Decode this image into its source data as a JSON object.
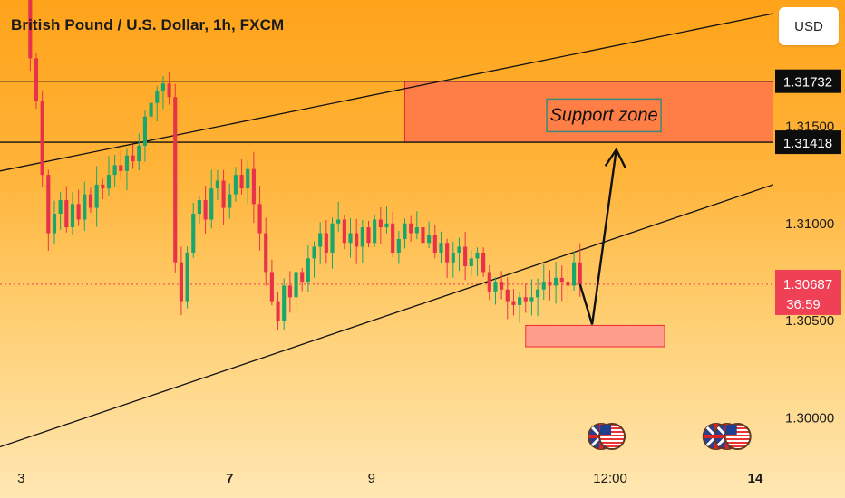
{
  "header": {
    "title": "British Pound / U.S. Dollar, 1h, FXCM",
    "currency_button": "USD"
  },
  "price_axis": {
    "ticks": [
      "1.31500",
      "1.31000",
      "1.30500",
      "1.30000"
    ],
    "tag_resistance": "1.31732",
    "tag_support": "1.31418",
    "tag_last": "1.30687",
    "tag_countdown": "36:59"
  },
  "time_axis": {
    "ticks": [
      "3",
      "7",
      "9",
      "12:00",
      "14"
    ],
    "bold": [
      false,
      true,
      false,
      false,
      true
    ]
  },
  "annotations": {
    "support_zone_label": "Support zone"
  },
  "colors": {
    "up": "#18a66e",
    "down": "#e8324a",
    "zone": "#ff7e45",
    "zone_border": "#ee2a39",
    "target_box": "#ff9e8a",
    "last_tag": "#f04055"
  },
  "chart_data": {
    "type": "candlestick",
    "symbol": "GBPUSD",
    "interval": "1h",
    "ylim": [
      1.2975,
      1.3215
    ],
    "levels": {
      "resistance": 1.31732,
      "support": 1.31418,
      "last": 1.30687
    },
    "zones": [
      {
        "label": "Support zone",
        "from": 1.31418,
        "to": 1.31732
      },
      {
        "label": "",
        "from": 1.30365,
        "to": 1.30475
      }
    ],
    "price_path": [
      [
        0,
        1.324
      ],
      [
        1,
        1.3185
      ],
      [
        2,
        1.3163
      ],
      [
        3,
        1.3125
      ],
      [
        4,
        1.3095
      ],
      [
        5,
        1.3105
      ],
      [
        6,
        1.3112
      ],
      [
        7,
        1.3098
      ],
      [
        8,
        1.311
      ],
      [
        9,
        1.3102
      ],
      [
        10,
        1.3115
      ],
      [
        11,
        1.3108
      ],
      [
        12,
        1.312
      ],
      [
        13,
        1.3118
      ],
      [
        14,
        1.3125
      ],
      [
        15,
        1.313
      ],
      [
        16,
        1.3127
      ],
      [
        17,
        1.3135
      ],
      [
        18,
        1.3132
      ],
      [
        19,
        1.314
      ],
      [
        20,
        1.3155
      ],
      [
        21,
        1.3162
      ],
      [
        22,
        1.3168
      ],
      [
        23,
        1.3172
      ],
      [
        24,
        1.3165
      ],
      [
        25,
        1.308
      ],
      [
        26,
        1.306
      ],
      [
        27,
        1.3085
      ],
      [
        28,
        1.3105
      ],
      [
        29,
        1.3112
      ],
      [
        30,
        1.3102
      ],
      [
        31,
        1.3118
      ],
      [
        32,
        1.3122
      ],
      [
        33,
        1.3108
      ],
      [
        34,
        1.3115
      ],
      [
        35,
        1.3125
      ],
      [
        36,
        1.3118
      ],
      [
        37,
        1.3128
      ],
      [
        38,
        1.311
      ],
      [
        39,
        1.3095
      ],
      [
        40,
        1.3075
      ],
      [
        41,
        1.306
      ],
      [
        42,
        1.305
      ],
      [
        43,
        1.3068
      ],
      [
        44,
        1.3062
      ],
      [
        45,
        1.3075
      ],
      [
        46,
        1.307
      ],
      [
        47,
        1.3082
      ],
      [
        48,
        1.3088
      ],
      [
        49,
        1.3095
      ],
      [
        50,
        1.3085
      ],
      [
        51,
        1.31
      ],
      [
        52,
        1.3102
      ],
      [
        53,
        1.309
      ],
      [
        54,
        1.3095
      ],
      [
        55,
        1.3088
      ],
      [
        56,
        1.3098
      ],
      [
        57,
        1.309
      ],
      [
        58,
        1.3102
      ],
      [
        59,
        1.3098
      ],
      [
        60,
        1.31
      ],
      [
        61,
        1.3085
      ],
      [
        62,
        1.3092
      ],
      [
        63,
        1.31
      ],
      [
        64,
        1.3095
      ],
      [
        65,
        1.3098
      ],
      [
        66,
        1.309
      ],
      [
        67,
        1.3094
      ],
      [
        68,
        1.3085
      ],
      [
        69,
        1.309
      ],
      [
        70,
        1.308
      ],
      [
        71,
        1.3085
      ],
      [
        72,
        1.3088
      ],
      [
        73,
        1.3078
      ],
      [
        74,
        1.3082
      ],
      [
        75,
        1.3085
      ],
      [
        76,
        1.3075
      ],
      [
        77,
        1.3065
      ],
      [
        78,
        1.307
      ],
      [
        79,
        1.3066
      ],
      [
        80,
        1.306
      ],
      [
        81,
        1.3058
      ],
      [
        82,
        1.3062
      ],
      [
        83,
        1.306
      ],
      [
        84,
        1.3062
      ],
      [
        85,
        1.3066
      ],
      [
        86,
        1.307
      ],
      [
        87,
        1.3068
      ],
      [
        88,
        1.3072
      ],
      [
        89,
        1.307
      ],
      [
        90,
        1.3068
      ],
      [
        91,
        1.308
      ],
      [
        92,
        1.30687
      ]
    ],
    "projection": [
      [
        92,
        1.30687
      ],
      [
        94,
        1.3048
      ],
      [
        98,
        1.3138
      ]
    ],
    "trendlines": [
      {
        "from": [
          -4,
          1.3127
        ],
        "to": [
          124,
          1.3208
        ]
      },
      {
        "from": [
          -4,
          1.2985
        ],
        "to": [
          124,
          1.312
        ]
      }
    ],
    "xlim": [
      -4,
      124
    ],
    "x_ticks": [
      {
        "label": "3",
        "x": -0.5
      },
      {
        "label": "7",
        "x": 34
      },
      {
        "label": "9",
        "x": 57.5
      },
      {
        "label": "12:00",
        "x": 97
      },
      {
        "label": "14",
        "x": 121
      }
    ],
    "events": [
      {
        "x": 95.5,
        "flags": [
          "gb",
          "us"
        ]
      },
      {
        "x": 114.5,
        "flags": [
          "gb",
          "gb",
          "us"
        ]
      }
    ]
  }
}
